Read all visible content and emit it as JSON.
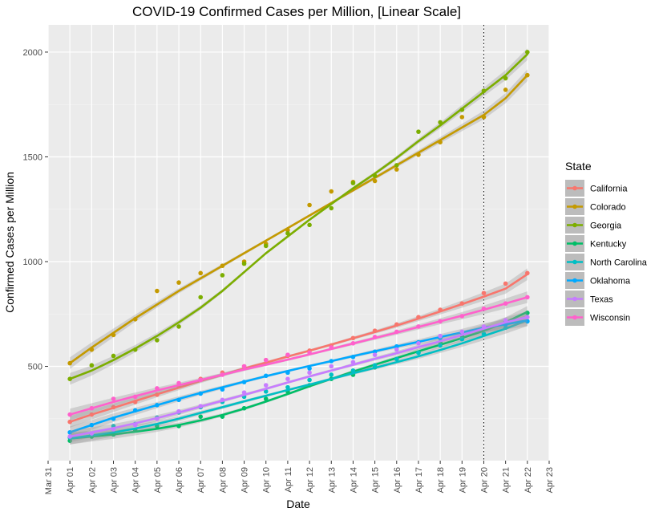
{
  "chart_data": {
    "type": "line",
    "title": "COVID-19 Confirmed Cases per Million, [Linear Scale]",
    "xlabel": "Date",
    "ylabel": "Confirmed Cases per Million",
    "x_ticks": [
      "Mar 31",
      "Apr 01",
      "Apr 02",
      "Apr 03",
      "Apr 04",
      "Apr 05",
      "Apr 06",
      "Apr 07",
      "Apr 08",
      "Apr 09",
      "Apr 10",
      "Apr 11",
      "Apr 12",
      "Apr 13",
      "Apr 14",
      "Apr 15",
      "Apr 16",
      "Apr 17",
      "Apr 18",
      "Apr 19",
      "Apr 20",
      "Apr 21",
      "Apr 22",
      "Apr 23"
    ],
    "y_ticks": [
      500,
      1000,
      1500,
      2000
    ],
    "xlim": [
      "Mar 31",
      "Apr 23"
    ],
    "ylim": [
      50,
      2130
    ],
    "grid": true,
    "legend_title": "State",
    "legend_position": "right",
    "vline": "Apr 20",
    "x": [
      "Apr 01",
      "Apr 02",
      "Apr 03",
      "Apr 04",
      "Apr 05",
      "Apr 06",
      "Apr 07",
      "Apr 08",
      "Apr 09",
      "Apr 10",
      "Apr 11",
      "Apr 12",
      "Apr 13",
      "Apr 14",
      "Apr 15",
      "Apr 16",
      "Apr 17",
      "Apr 18",
      "Apr 19",
      "Apr 20",
      "Apr 21",
      "Apr 22"
    ],
    "series": [
      {
        "name": "California",
        "color": "#F8766D",
        "points": [
          235,
          270,
          305,
          330,
          365,
          405,
          440,
          470,
          500,
          530,
          550,
          575,
          600,
          635,
          670,
          700,
          735,
          770,
          800,
          850,
          895,
          945
        ],
        "fit": [
          235,
          270,
          302,
          335,
          367,
          398,
          430,
          460,
          490,
          518,
          547,
          575,
          604,
          634,
          664,
          695,
          728,
          762,
          797,
          833,
          871,
          940
        ]
      },
      {
        "name": "Colorado",
        "color": "#C49A00",
        "points": [
          515,
          580,
          650,
          725,
          860,
          900,
          945,
          980,
          1000,
          1085,
          1150,
          1270,
          1335,
          1380,
          1385,
          1440,
          1510,
          1570,
          1690,
          1690,
          1820,
          1890
        ],
        "fit": [
          515,
          590,
          660,
          730,
          795,
          860,
          920,
          980,
          1040,
          1100,
          1160,
          1220,
          1280,
          1340,
          1400,
          1460,
          1520,
          1580,
          1640,
          1700,
          1780,
          1890
        ]
      },
      {
        "name": "Georgia",
        "color": "#7CAE00",
        "points": [
          440,
          505,
          550,
          580,
          625,
          690,
          830,
          935,
          990,
          1075,
          1135,
          1175,
          1255,
          1375,
          1410,
          1460,
          1620,
          1665,
          1725,
          1815,
          1875,
          2000
        ],
        "fit": [
          440,
          480,
          530,
          585,
          645,
          710,
          780,
          860,
          950,
          1040,
          1120,
          1200,
          1275,
          1350,
          1420,
          1495,
          1575,
          1650,
          1730,
          1810,
          1890,
          1990
        ]
      },
      {
        "name": "Kentucky",
        "color": "#00BE67",
        "points": [
          145,
          165,
          175,
          195,
          215,
          215,
          260,
          260,
          300,
          345,
          380,
          410,
          440,
          460,
          495,
          535,
          565,
          615,
          645,
          680,
          715,
          755
        ],
        "fit": [
          155,
          165,
          175,
          188,
          202,
          220,
          242,
          268,
          298,
          332,
          368,
          405,
          440,
          475,
          508,
          540,
          572,
          603,
          635,
          670,
          710,
          760
        ]
      },
      {
        "name": "North Carolina",
        "color": "#00BFC4",
        "points": [
          160,
          175,
          215,
          225,
          255,
          280,
          305,
          330,
          355,
          380,
          400,
          435,
          460,
          480,
          505,
          535,
          565,
          600,
          630,
          655,
          685,
          715
        ],
        "fit": [
          155,
          170,
          185,
          203,
          225,
          250,
          278,
          305,
          333,
          360,
          387,
          413,
          440,
          467,
          493,
          520,
          548,
          578,
          610,
          645,
          680,
          720
        ]
      },
      {
        "name": "Oklahoma",
        "color": "#00A9FF",
        "points": [
          185,
          220,
          250,
          290,
          315,
          340,
          370,
          390,
          425,
          455,
          470,
          490,
          525,
          545,
          570,
          595,
          615,
          635,
          660,
          685,
          700,
          715
        ],
        "fit": [
          185,
          220,
          255,
          285,
          315,
          345,
          373,
          400,
          427,
          453,
          478,
          502,
          525,
          549,
          572,
          595,
          617,
          640,
          662,
          685,
          700,
          720
        ]
      },
      {
        "name": "Texas",
        "color": "#C77CFF",
        "points": [
          165,
          180,
          200,
          220,
          250,
          285,
          310,
          340,
          375,
          410,
          440,
          470,
          500,
          520,
          555,
          580,
          610,
          645,
          665,
          690,
          720,
          735
        ],
        "fit": [
          165,
          185,
          205,
          228,
          253,
          280,
          308,
          336,
          364,
          393,
          423,
          452,
          480,
          508,
          536,
          563,
          592,
          620,
          650,
          680,
          710,
          735
        ]
      },
      {
        "name": "Wisconsin",
        "color": "#FF61CC",
        "points": [
          270,
          300,
          345,
          355,
          395,
          420,
          435,
          460,
          500,
          530,
          555,
          565,
          590,
          610,
          640,
          665,
          690,
          715,
          740,
          775,
          800,
          830
        ],
        "fit": [
          270,
          300,
          330,
          358,
          385,
          410,
          435,
          460,
          485,
          508,
          532,
          557,
          583,
          609,
          635,
          661,
          688,
          715,
          742,
          770,
          800,
          830
        ]
      }
    ]
  }
}
